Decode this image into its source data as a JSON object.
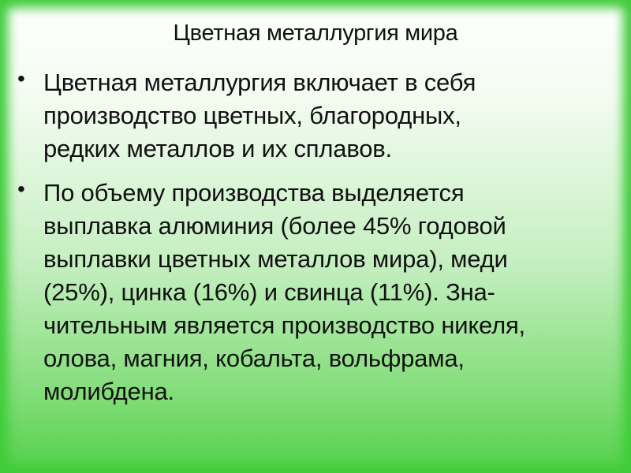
{
  "slide": {
    "title": "Цветная металлургия мира",
    "bullets": [
      {
        "lines": [
          "Цветная металлургия включает в себя",
          "производство цветных, благородных,",
          "редких металлов и их сплавов."
        ]
      },
      {
        "lines": [
          "По объему производства выделяется",
          "выплавка алюминия (более 45% годовой",
          "выплавки цветных металлов мира), меди",
          "(25%), цинка (16%) и свинца (11%). Зна-",
          "чительным является производство никеля,",
          "олова, магния, кобальта, вольфрама,",
          "молибдена."
        ]
      }
    ],
    "bullet_glyph": "•"
  },
  "colors": {
    "frame": "#3fcc3a",
    "text": "#111111"
  }
}
